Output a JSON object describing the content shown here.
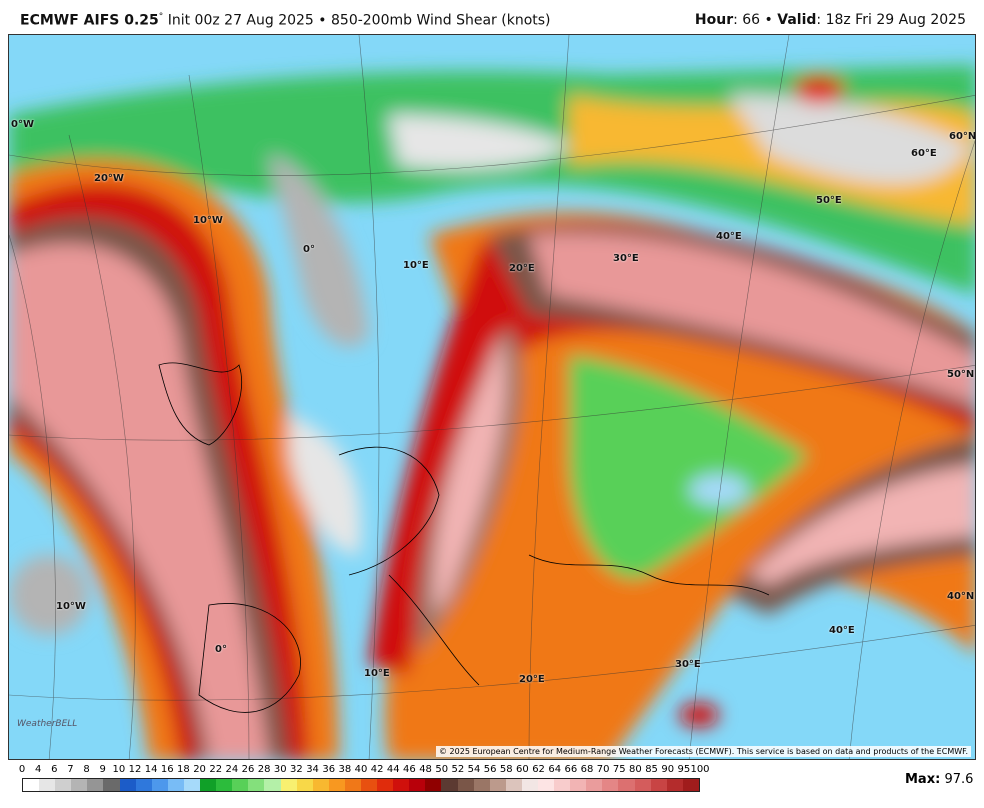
{
  "header": {
    "model": "ECMWF AIFS 0.25",
    "degree": "°",
    "description": "Init 00z 27 Aug 2025 • 850-200mb Wind Shear (knots)",
    "hour_label": "Hour",
    "hour_value": ": 66 •",
    "valid_label": "Valid",
    "valid_value": ": 18z Fri 29 Aug 2025"
  },
  "map": {
    "grid_labels": [
      "0°W",
      "20°W",
      "10°W",
      "0°",
      "10°E",
      "20°E",
      "30°E",
      "40°E",
      "50°E",
      "60°E",
      "60°N",
      "50°N",
      "40°N",
      "10°W",
      "0°",
      "10°E",
      "20°E",
      "30°E",
      "40°E"
    ],
    "copyright": "© 2025 European Centre for Medium-Range Weather Forecasts (ECMWF). This service is based on data and products of the ECMWF.",
    "logo": "WeatherBELL"
  },
  "colorbar": {
    "ticks": [
      0,
      4,
      6,
      7,
      8,
      9,
      10,
      12,
      14,
      16,
      18,
      20,
      22,
      24,
      26,
      28,
      30,
      32,
      34,
      36,
      38,
      40,
      42,
      44,
      46,
      48,
      50,
      52,
      54,
      56,
      58,
      60,
      62,
      64,
      66,
      68,
      70,
      75,
      80,
      85,
      90,
      95,
      100
    ],
    "colors": [
      "#ffffff",
      "#e6e6e6",
      "#cfcfcf",
      "#b4b4b4",
      "#959595",
      "#6a6a6a",
      "#1c5cc8",
      "#2f78dc",
      "#4d98ec",
      "#78bcf6",
      "#a6dafa",
      "#10a028",
      "#2cbc3c",
      "#58d058",
      "#84e07c",
      "#b4f0a8",
      "#f8f070",
      "#f8d848",
      "#f8b830",
      "#f89820",
      "#f07818",
      "#e85010",
      "#e02c0c",
      "#d0100c",
      "#b8000a",
      "#900000",
      "#5c3a32",
      "#7a5648",
      "#9a7666",
      "#bc9a8c",
      "#dcc4bc",
      "#f2e6e4",
      "#fde4e4",
      "#f8cccc",
      "#f2b4b4",
      "#ea9c9c",
      "#e48686",
      "#dc7070",
      "#d45c5c",
      "#c84444",
      "#b42c2c",
      "#a01c1c"
    ]
  },
  "footer": {
    "max_label": "Max:",
    "max_value": 97.6
  }
}
